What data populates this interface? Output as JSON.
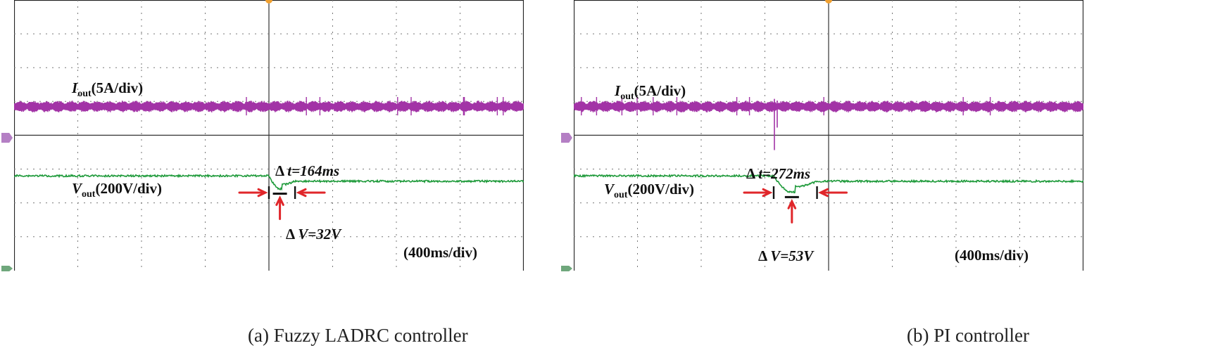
{
  "chart_data": [
    {
      "type": "line",
      "caption": "(a) Fuzzy LADRC controller",
      "time_scale": "(400ms/div)",
      "divisions_x": 8,
      "divisions_y": 8,
      "grid": true,
      "step_time_div": 4.0,
      "current": {
        "name": "I",
        "subscript": "out",
        "scale": "(5A/div)",
        "color": "#a233a6",
        "center_div": 3.15,
        "ripple_pp_div": 0.35,
        "cycles_per_div": 5,
        "disturbance": "none"
      },
      "voltage": {
        "name": "V",
        "subscript": "out",
        "scale": "(200V/div)",
        "color": "#1e9a3a",
        "before_div": 5.2,
        "after_div": 5.36,
        "dip_min_div": 5.52,
        "dip_duration_div": 0.41
      },
      "annotations": {
        "delta_t_prefix": "Δ ",
        "delta_t_label": "t=164ms",
        "delta_t_ms": 164,
        "delta_v_prefix": "Δ ",
        "delta_v_label": "V=32V",
        "delta_v_volts": 32,
        "marker_color": "#e0262a"
      }
    },
    {
      "type": "line",
      "caption": "(b) PI controller",
      "time_scale": "(400ms/div)",
      "divisions_x": 8,
      "divisions_y": 8,
      "grid": true,
      "step_time_div": 4.0,
      "current": {
        "name": "I",
        "subscript": "out",
        "scale": "(5A/div)",
        "color": "#a233a6",
        "center_div": 3.15,
        "ripple_pp_div": 0.35,
        "cycles_per_div": 5,
        "disturbance": "spike"
      },
      "voltage": {
        "name": "V",
        "subscript": "out",
        "scale": "(200V/div)",
        "color": "#1e9a3a",
        "before_div": 5.2,
        "after_div": 5.36,
        "dip_min_div": 5.62,
        "dip_duration_div": 0.68
      },
      "annotations": {
        "delta_t_prefix": "Δ ",
        "delta_t_label": "t=272ms",
        "delta_t_ms": 272,
        "delta_v_prefix": "Δ ",
        "delta_v_label": "V=53V",
        "delta_v_volts": 53,
        "marker_color": "#e0262a"
      }
    }
  ]
}
